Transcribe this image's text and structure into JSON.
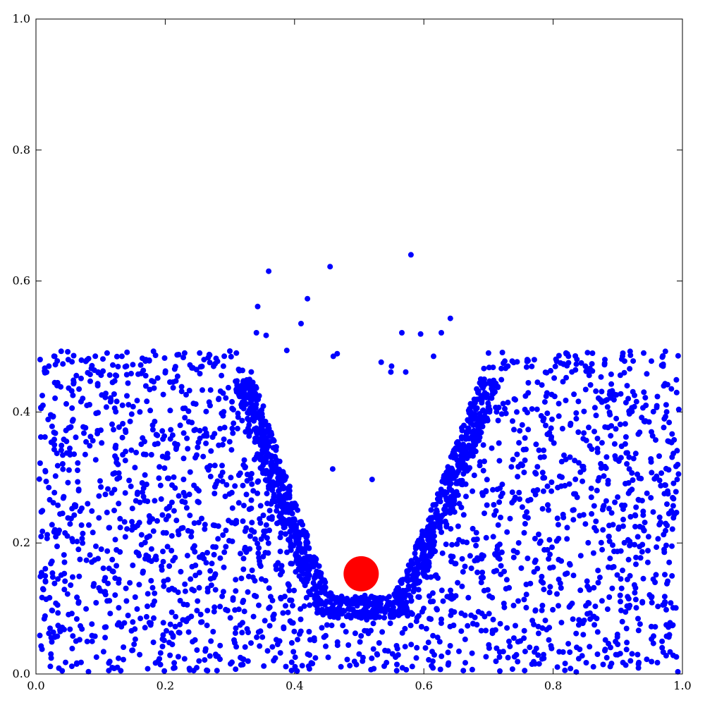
{
  "chart_data": {
    "type": "scatter",
    "title": "",
    "xlabel": "",
    "ylabel": "",
    "xlim": [
      0.0,
      1.0
    ],
    "ylim": [
      0.0,
      1.0
    ],
    "grid": false,
    "xticks": [
      "0.0",
      "0.2",
      "0.4",
      "0.6",
      "0.8",
      "1.0"
    ],
    "yticks": [
      "0.0",
      "0.2",
      "0.4",
      "0.6",
      "0.8",
      "1.0"
    ],
    "xtick_values": [
      0.0,
      0.2,
      0.4,
      0.6,
      0.8,
      1.0
    ],
    "ytick_values": [
      0.0,
      0.2,
      0.4,
      0.6,
      0.8,
      1.0
    ],
    "series": [
      {
        "color": "#0000ff",
        "marker": "circle",
        "points": [
          [
            0.36,
            0.615
          ],
          [
            0.455,
            0.622
          ],
          [
            0.58,
            0.64
          ],
          [
            0.343,
            0.561
          ],
          [
            0.42,
            0.573
          ],
          [
            0.41,
            0.535
          ],
          [
            0.641,
            0.543
          ],
          [
            0.341,
            0.521
          ],
          [
            0.356,
            0.517
          ],
          [
            0.566,
            0.521
          ],
          [
            0.595,
            0.519
          ],
          [
            0.627,
            0.521
          ],
          [
            0.388,
            0.494
          ],
          [
            0.46,
            0.485
          ],
          [
            0.466,
            0.489
          ],
          [
            0.534,
            0.476
          ],
          [
            0.55,
            0.47
          ],
          [
            0.572,
            0.461
          ],
          [
            0.549,
            0.461
          ],
          [
            0.459,
            0.313
          ],
          [
            0.52,
            0.297
          ],
          [
            0.02,
            0.47
          ],
          [
            0.05,
            0.48
          ],
          [
            0.08,
            0.46
          ],
          [
            0.11,
            0.49
          ],
          [
            0.14,
            0.47
          ],
          [
            0.17,
            0.48
          ],
          [
            0.2,
            0.46
          ],
          [
            0.23,
            0.49
          ],
          [
            0.26,
            0.48
          ],
          [
            0.29,
            0.47
          ],
          [
            0.31,
            0.49
          ],
          [
            0.7,
            0.49
          ],
          [
            0.73,
            0.47
          ],
          [
            0.76,
            0.48
          ],
          [
            0.79,
            0.46
          ],
          [
            0.82,
            0.49
          ],
          [
            0.85,
            0.47
          ],
          [
            0.88,
            0.48
          ],
          [
            0.91,
            0.46
          ],
          [
            0.94,
            0.49
          ],
          [
            0.97,
            0.47
          ],
          [
            0.615,
            0.485
          ]
        ]
      },
      {
        "color": "#ff0000",
        "marker": "circle",
        "points": [
          [
            0.503,
            0.153
          ]
        ]
      }
    ]
  }
}
